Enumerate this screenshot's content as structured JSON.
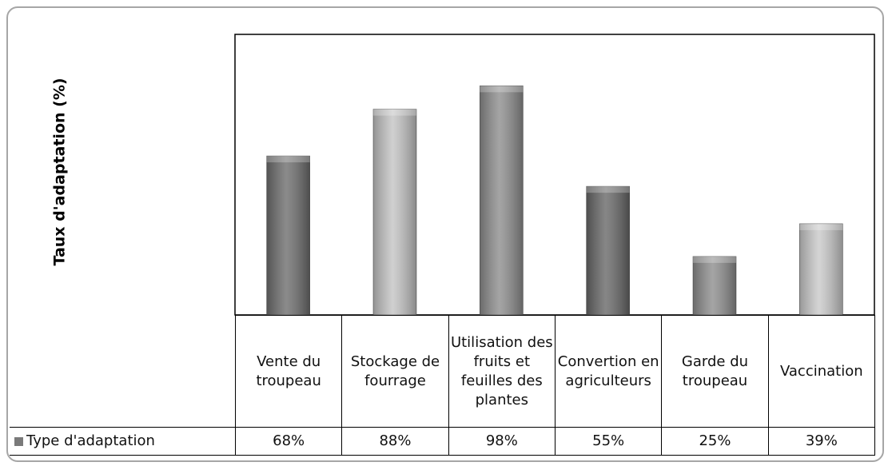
{
  "chart_data": {
    "type": "bar",
    "y_label": "Taux d'adaptation (%)",
    "categories": [
      "Vente du troupeau",
      "Stockage de fourrage",
      "Utilisation des fruits et feuilles des plantes",
      "Convertion en agriculteurs",
      "Garde du troupeau",
      "Vaccination"
    ],
    "series": [
      {
        "name": "Type d'adaptation",
        "color": "#7a7a7a",
        "colors": [
          "#6e6e6e",
          "#c4c4c4",
          "#8e8e8e",
          "#686868",
          "#8e8e8e",
          "#cacaca"
        ],
        "values": [
          68,
          88,
          98,
          55,
          25,
          39
        ],
        "value_labels": [
          "68%",
          "88%",
          "98%",
          "55%",
          "25%",
          "39%"
        ]
      }
    ],
    "ylim": [
      0,
      120
    ]
  }
}
